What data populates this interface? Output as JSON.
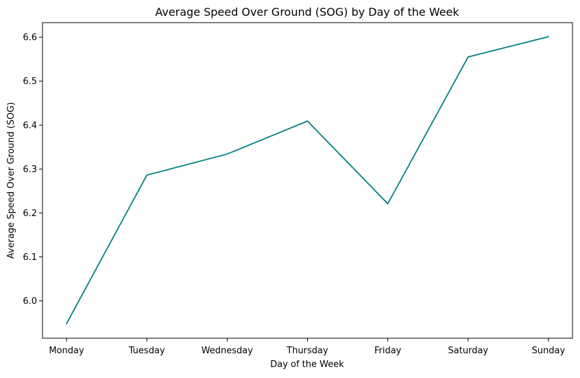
{
  "chart_data": {
    "type": "line",
    "title": "Average Speed Over Ground (SOG) by Day of the Week",
    "xlabel": "Day of the Week",
    "ylabel": "Average Speed Over Ground (SOG)",
    "categories": [
      "Monday",
      "Tuesday",
      "Wednesday",
      "Thursday",
      "Friday",
      "Saturday",
      "Sunday"
    ],
    "series": [
      {
        "values": [
          5.948,
          6.286,
          6.334,
          6.409,
          6.221,
          6.555,
          6.601
        ],
        "color": "#008080"
      }
    ],
    "yticks": [
      "6.0",
      "6.1",
      "6.2",
      "6.3",
      "6.4",
      "6.5",
      "6.6"
    ],
    "ylim": [
      5.915,
      6.633
    ],
    "grid": false,
    "legend": "none"
  }
}
